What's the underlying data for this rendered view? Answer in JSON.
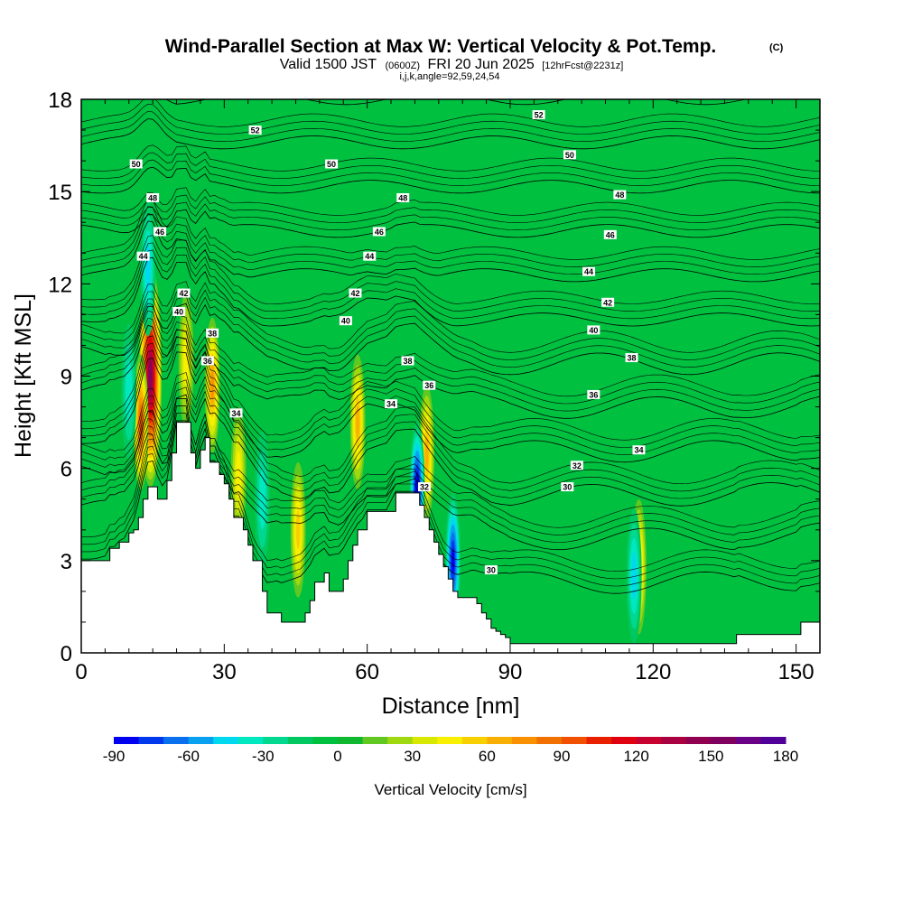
{
  "title": {
    "main": "Wind-Parallel Section at Max W: Vertical Velocity & Pot.Temp.",
    "copyright": "(C)",
    "valid_prefix": "Valid 1500 JST",
    "valid_utc": "(0600Z)",
    "valid_date": "FRI 20 Jun 2025",
    "forecast": "[12hrFcst@2231z]",
    "grid": "i,j,k,angle=92,59,24,54"
  },
  "chart_data": {
    "type": "heatmap",
    "xlabel": "Distance [nm]",
    "ylabel": "Height [Kft MSL]",
    "xlim": [
      0,
      155
    ],
    "ylim": [
      0,
      18
    ],
    "x_ticks": [
      0,
      30,
      60,
      90,
      120,
      150
    ],
    "y_ticks": [
      0,
      3,
      6,
      9,
      12,
      15,
      18
    ],
    "colorbar": {
      "label": "Vertical Velocity [cm/s]",
      "min": -90,
      "max": 180,
      "step": 10,
      "tick_values": [
        -90,
        -60,
        -30,
        0,
        30,
        60,
        90,
        120,
        150,
        180
      ],
      "colors": [
        "#0000f0",
        "#0038ee",
        "#0a70ee",
        "#0aa0f0",
        "#00d8f0",
        "#00e8c0",
        "#00d890",
        "#00c860",
        "#00c040",
        "#10b830",
        "#60c820",
        "#a0d810",
        "#d8e800",
        "#f8f000",
        "#f8d000",
        "#f8b000",
        "#f89000",
        "#f07000",
        "#f05000",
        "#e82000",
        "#e00010",
        "#c80030",
        "#a80040",
        "#900050",
        "#800060",
        "#6a0088",
        "#500098"
      ]
    },
    "terrain_kft": [
      [
        0,
        3.0
      ],
      [
        5,
        3.0
      ],
      [
        6,
        3.4
      ],
      [
        7,
        3.4
      ],
      [
        8,
        3.6
      ],
      [
        9,
        3.6
      ],
      [
        10,
        3.9
      ],
      [
        11,
        4.0
      ],
      [
        12,
        4.4
      ],
      [
        13,
        5.0
      ],
      [
        14,
        5.4
      ],
      [
        15,
        5.4
      ],
      [
        16,
        5.0
      ],
      [
        17,
        5.0
      ],
      [
        18,
        5.6
      ],
      [
        19,
        6.5
      ],
      [
        20,
        7.5
      ],
      [
        22,
        7.5
      ],
      [
        23,
        6.5
      ],
      [
        24,
        6.0
      ],
      [
        25,
        6.6
      ],
      [
        26,
        7.0
      ],
      [
        27,
        6.2
      ],
      [
        28,
        6.2
      ],
      [
        29,
        5.8
      ],
      [
        30,
        5.5
      ],
      [
        31,
        5.0
      ],
      [
        32,
        4.4
      ],
      [
        33,
        4.4
      ],
      [
        34,
        4.0
      ],
      [
        35,
        3.5
      ],
      [
        36,
        3.0
      ],
      [
        38,
        2.0
      ],
      [
        39,
        1.3
      ],
      [
        41,
        1.3
      ],
      [
        42,
        1.0
      ],
      [
        46,
        1.0
      ],
      [
        47,
        1.3
      ],
      [
        48,
        1.7
      ],
      [
        49,
        2.3
      ],
      [
        51,
        2.6
      ],
      [
        52,
        2.0
      ],
      [
        53,
        2.0
      ],
      [
        54,
        2.0
      ],
      [
        55,
        2.4
      ],
      [
        56,
        3.0
      ],
      [
        57,
        3.5
      ],
      [
        58,
        4.0
      ],
      [
        60,
        4.6
      ],
      [
        64,
        4.6
      ],
      [
        66,
        5.2
      ],
      [
        70,
        5.2
      ],
      [
        71,
        4.8
      ],
      [
        72,
        4.4
      ],
      [
        73,
        4.0
      ],
      [
        74,
        3.6
      ],
      [
        75,
        3.2
      ],
      [
        76,
        2.8
      ],
      [
        77,
        2.4
      ],
      [
        78,
        2.0
      ],
      [
        79,
        1.8
      ],
      [
        82,
        1.8
      ],
      [
        83,
        1.6
      ],
      [
        84,
        1.3
      ],
      [
        85,
        1.1
      ],
      [
        86,
        0.8
      ],
      [
        87,
        0.7
      ],
      [
        88,
        0.6
      ],
      [
        89,
        0.5
      ],
      [
        90,
        0.3
      ],
      [
        137,
        0.3
      ],
      [
        137.5,
        0.6
      ],
      [
        150,
        0.6
      ],
      [
        151,
        1.0
      ],
      [
        155,
        1.0
      ]
    ],
    "vertical_velocity_cells": [
      {
        "x": 14.5,
        "z": 9.0,
        "peak": 150,
        "note": "strongest updraft"
      },
      {
        "x": 12.5,
        "z": 7.5,
        "peak": 90
      },
      {
        "x": 27.5,
        "z": 8.7,
        "peak": 70
      },
      {
        "x": 22.0,
        "z": 9.5,
        "peak": 40
      },
      {
        "x": 33.0,
        "z": 5.8,
        "peak": 40
      },
      {
        "x": 45.5,
        "z": 4.0,
        "peak": 50
      },
      {
        "x": 58.0,
        "z": 7.5,
        "peak": 60
      },
      {
        "x": 72.5,
        "z": 6.5,
        "peak": 60
      },
      {
        "x": 117.0,
        "z": 2.8,
        "peak": 60
      },
      {
        "x": 14.0,
        "z": 12.5,
        "peak": -40
      },
      {
        "x": 10.0,
        "z": 8.5,
        "peak": -30
      },
      {
        "x": 70.5,
        "z": 5.3,
        "peak": -90,
        "note": "strongest downdraft"
      },
      {
        "x": 78.0,
        "z": 3.0,
        "peak": -80
      },
      {
        "x": 116.0,
        "z": 2.5,
        "peak": -40
      },
      {
        "x": 38.0,
        "z": 5.0,
        "peak": -25
      }
    ],
    "pot_temp_contours": [
      {
        "label": "30",
        "level": 30
      },
      {
        "label": "32",
        "level": 32
      },
      {
        "label": "34",
        "level": 34
      },
      {
        "label": "36",
        "level": 36
      },
      {
        "label": "38",
        "level": 38
      },
      {
        "label": "40",
        "level": 40
      },
      {
        "label": "42",
        "level": 42
      },
      {
        "label": "44",
        "level": 44
      },
      {
        "label": "46",
        "level": 46
      },
      {
        "label": "48",
        "level": 48
      },
      {
        "label": "50",
        "level": 50
      },
      {
        "label": "52",
        "level": 52
      }
    ],
    "contour_labels": [
      {
        "text": "52",
        "x": 36.5,
        "z": 17.0
      },
      {
        "text": "52",
        "x": 96.0,
        "z": 17.5
      },
      {
        "text": "50",
        "x": 11.5,
        "z": 15.9
      },
      {
        "text": "50",
        "x": 52.5,
        "z": 15.9
      },
      {
        "text": "50",
        "x": 102.5,
        "z": 16.2
      },
      {
        "text": "48",
        "x": 15.0,
        "z": 14.8
      },
      {
        "text": "48",
        "x": 67.5,
        "z": 14.8
      },
      {
        "text": "48",
        "x": 113.0,
        "z": 14.9
      },
      {
        "text": "46",
        "x": 16.5,
        "z": 13.7
      },
      {
        "text": "46",
        "x": 62.5,
        "z": 13.7
      },
      {
        "text": "46",
        "x": 111.0,
        "z": 13.6
      },
      {
        "text": "44",
        "x": 13.0,
        "z": 12.9
      },
      {
        "text": "44",
        "x": 60.5,
        "z": 12.9
      },
      {
        "text": "44",
        "x": 106.5,
        "z": 12.4
      },
      {
        "text": "42",
        "x": 21.5,
        "z": 11.7
      },
      {
        "text": "42",
        "x": 57.5,
        "z": 11.7
      },
      {
        "text": "42",
        "x": 110.5,
        "z": 11.4
      },
      {
        "text": "40",
        "x": 20.5,
        "z": 11.1
      },
      {
        "text": "40",
        "x": 55.5,
        "z": 10.8
      },
      {
        "text": "40",
        "x": 107.5,
        "z": 10.5
      },
      {
        "text": "38",
        "x": 27.5,
        "z": 10.4
      },
      {
        "text": "38",
        "x": 68.5,
        "z": 9.5
      },
      {
        "text": "38",
        "x": 115.5,
        "z": 9.6
      },
      {
        "text": "36",
        "x": 26.5,
        "z": 9.5
      },
      {
        "text": "36",
        "x": 73.0,
        "z": 8.7
      },
      {
        "text": "36",
        "x": 107.5,
        "z": 8.4
      },
      {
        "text": "34",
        "x": 32.5,
        "z": 7.8
      },
      {
        "text": "34",
        "x": 65.0,
        "z": 8.1
      },
      {
        "text": "34",
        "x": 117.0,
        "z": 6.6
      },
      {
        "text": "32",
        "x": 72.0,
        "z": 5.4
      },
      {
        "text": "32",
        "x": 104.0,
        "z": 6.1
      },
      {
        "text": "30",
        "x": 86.0,
        "z": 2.7
      },
      {
        "text": "30",
        "x": 102.0,
        "z": 5.4
      }
    ]
  }
}
